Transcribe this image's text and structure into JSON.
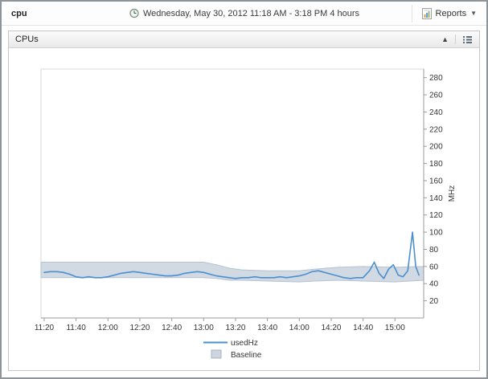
{
  "header": {
    "title": "cpu",
    "timerange": "Wednesday, May 30, 2012 11:18 AM - 3:18 PM 4 hours",
    "reports_label": "Reports"
  },
  "panel": {
    "title": "CPUs"
  },
  "chart_data": {
    "type": "line",
    "title": "",
    "xlabel": "",
    "ylabel": "MHz",
    "x_start": "11:18",
    "x_end": "15:18",
    "x_ticks": [
      "11:20",
      "11:40",
      "12:00",
      "12:20",
      "12:40",
      "13:00",
      "13:20",
      "13:40",
      "14:00",
      "14:20",
      "14:40",
      "15:00"
    ],
    "ylim": [
      0,
      290
    ],
    "y_ticks": [
      20,
      40,
      60,
      80,
      100,
      120,
      140,
      160,
      180,
      200,
      220,
      240,
      260,
      280
    ],
    "grid": false,
    "legend_position": "bottom",
    "series": [
      {
        "name": "usedHz",
        "type": "line",
        "color": "#4a8fd0",
        "x": [
          "11:20",
          "11:24",
          "11:28",
          "11:32",
          "11:36",
          "11:40",
          "11:44",
          "11:48",
          "11:52",
          "11:56",
          "12:00",
          "12:04",
          "12:08",
          "12:12",
          "12:16",
          "12:20",
          "12:24",
          "12:28",
          "12:32",
          "12:36",
          "12:40",
          "12:44",
          "12:48",
          "12:52",
          "12:56",
          "13:00",
          "13:04",
          "13:08",
          "13:12",
          "13:16",
          "13:20",
          "13:24",
          "13:28",
          "13:32",
          "13:36",
          "13:40",
          "13:44",
          "13:48",
          "13:52",
          "13:56",
          "14:00",
          "14:04",
          "14:08",
          "14:12",
          "14:16",
          "14:20",
          "14:24",
          "14:28",
          "14:32",
          "14:36",
          "14:40",
          "14:44",
          "14:47",
          "14:50",
          "14:53",
          "14:56",
          "14:59",
          "15:02",
          "15:05",
          "15:08",
          "15:11",
          "15:13",
          "15:15"
        ],
        "values": [
          53,
          54,
          54,
          53,
          51,
          48,
          47,
          48,
          47,
          47,
          48,
          50,
          52,
          53,
          54,
          53,
          52,
          51,
          50,
          49,
          49,
          50,
          52,
          53,
          54,
          53,
          51,
          49,
          48,
          47,
          46,
          47,
          47,
          48,
          47,
          47,
          47,
          48,
          47,
          48,
          49,
          51,
          54,
          55,
          53,
          51,
          49,
          47,
          46,
          47,
          47,
          55,
          65,
          52,
          46,
          57,
          62,
          50,
          48,
          55,
          100,
          60,
          50
        ]
      },
      {
        "name": "Baseline",
        "type": "band",
        "color": "#ccd5e0",
        "edge": "#b6c2d0",
        "x": [
          "11:18",
          "12:30",
          "13:00",
          "13:08",
          "13:16",
          "13:24",
          "13:40",
          "14:00",
          "14:10",
          "14:24",
          "14:40",
          "15:00",
          "15:18"
        ],
        "upper": [
          65,
          65,
          65,
          62,
          58,
          56,
          55,
          55,
          57,
          59,
          60,
          59,
          60
        ],
        "lower": [
          47,
          47,
          47,
          46,
          44,
          44,
          43,
          42,
          43,
          44,
          43,
          42,
          44
        ]
      }
    ]
  }
}
